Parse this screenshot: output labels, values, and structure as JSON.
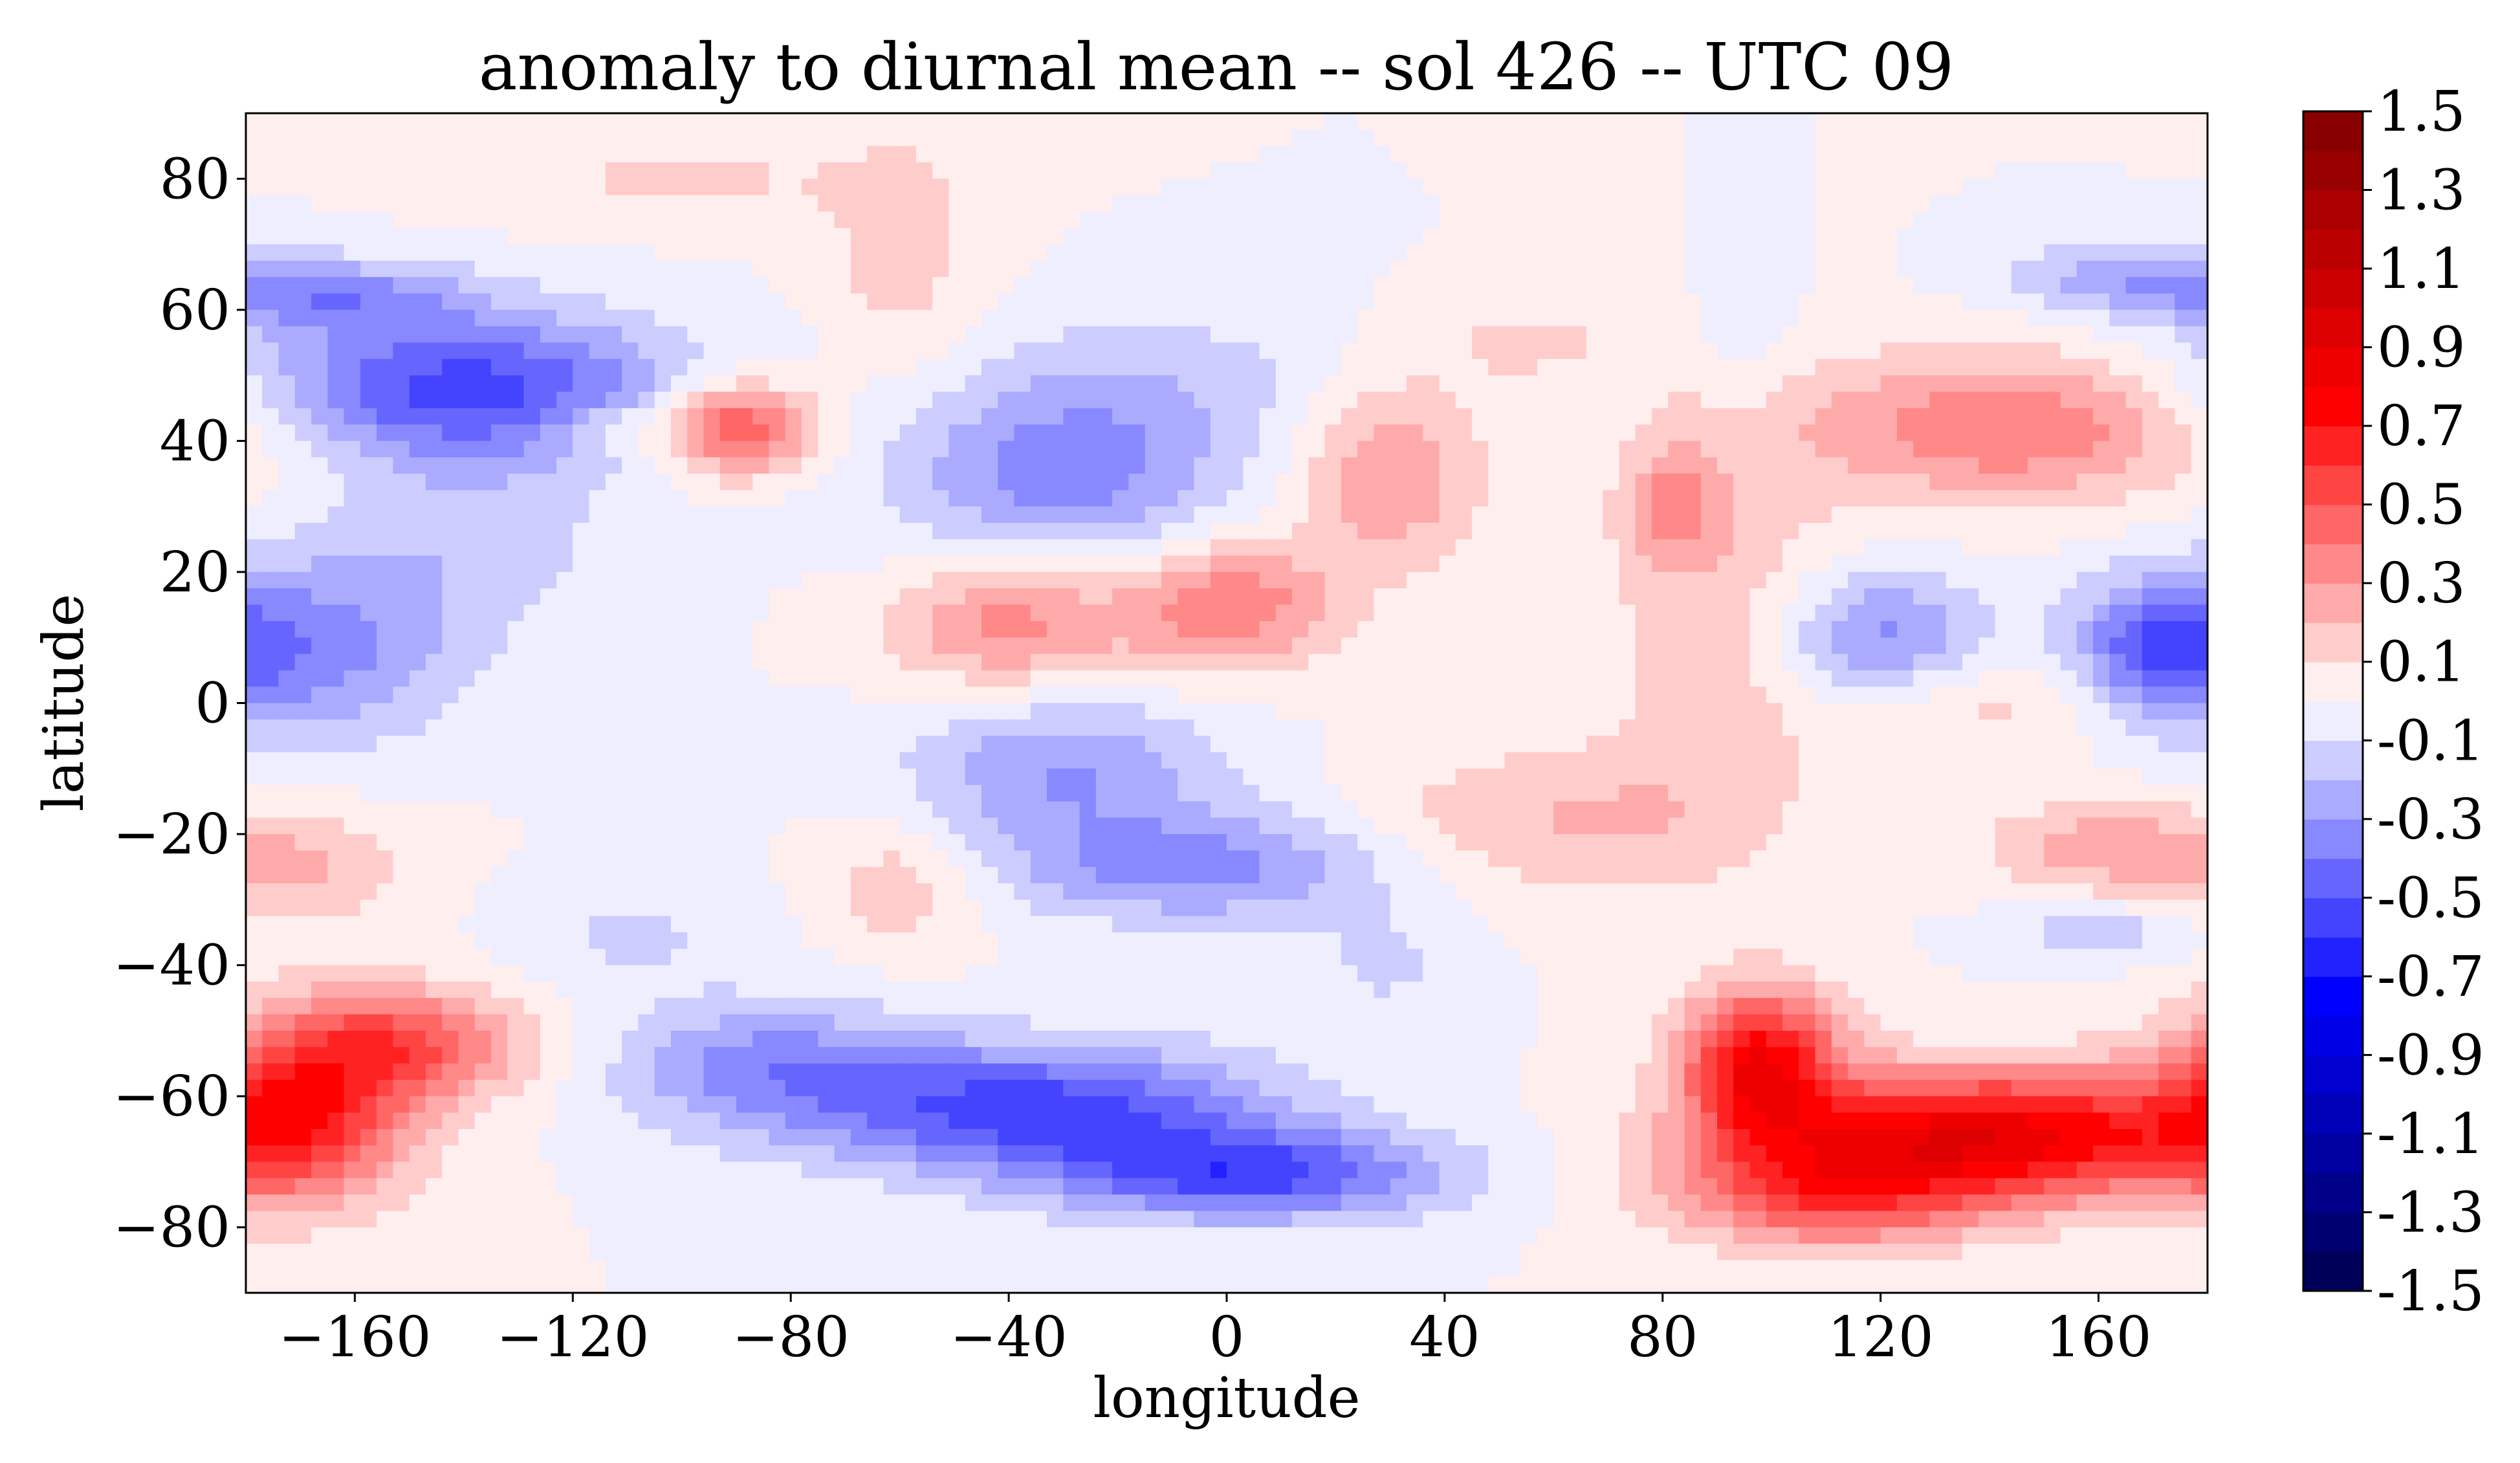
{
  "chart_data": {
    "type": "heatmap",
    "subtype": "filled-contour",
    "title": "anomaly to diurnal mean -- sol 426 -- UTC 09",
    "xlabel": "longitude",
    "ylabel": "latitude",
    "xlim": [
      -180,
      180
    ],
    "ylim": [
      -90,
      90
    ],
    "xticks": [
      -160,
      -120,
      -80,
      -40,
      0,
      40,
      80,
      120,
      160
    ],
    "xtick_labels": [
      "−160",
      "−120",
      "−80",
      "−40",
      "0",
      "40",
      "80",
      "120",
      "160"
    ],
    "yticks": [
      80,
      60,
      40,
      20,
      0,
      -20,
      -40,
      -60,
      -80
    ],
    "ytick_labels": [
      "80",
      "60",
      "40",
      "20",
      "0",
      "−20",
      "−40",
      "−60",
      "−80"
    ],
    "grid": false,
    "colormap": "seismic",
    "colorbar": {
      "placement": "right",
      "range": [
        -1.5,
        1.5
      ],
      "levels": [
        -1.5,
        -1.4,
        -1.3,
        -1.2,
        -1.1,
        -1.0,
        -0.9,
        -0.8,
        -0.7,
        -0.6,
        -0.5,
        -0.4,
        -0.3,
        -0.2,
        -0.1,
        0.0,
        0.1,
        0.2,
        0.3,
        0.4,
        0.5,
        0.6,
        0.7,
        0.8,
        0.9,
        1.0,
        1.1,
        1.2,
        1.3,
        1.4,
        1.5
      ],
      "tick_values": [
        1.5,
        1.3,
        1.1,
        0.9,
        0.7,
        0.5,
        0.3,
        0.1,
        -0.1,
        -0.3,
        -0.5,
        -0.7,
        -0.9,
        -1.1,
        -1.3,
        -1.5
      ],
      "tick_labels": [
        "1.5",
        "1.3",
        "1.1",
        "0.9",
        "0.7",
        "0.5",
        "0.3",
        "0.1",
        "-0.1",
        "-0.3",
        "-0.5",
        "-0.7",
        "-0.9",
        "-1.1",
        "-1.3",
        "-1.5"
      ]
    },
    "field_note": "Approximate anomaly features read off the contour plot (lon, lat centers in degrees, peak value, spread in degrees)",
    "features": [
      {
        "lon": -140,
        "lat": 48,
        "value": -0.55,
        "sx": 28,
        "sy": 8
      },
      {
        "lon": -165,
        "lat": 62,
        "value": -0.3,
        "sx": 18,
        "sy": 4
      },
      {
        "lon": -170,
        "lat": 8,
        "value": -0.35,
        "sx": 20,
        "sy": 10
      },
      {
        "lon": -140,
        "lat": 25,
        "value": -0.15,
        "sx": 20,
        "sy": 10
      },
      {
        "lon": -90,
        "lat": 42,
        "value": 0.55,
        "sx": 10,
        "sy": 5
      },
      {
        "lon": -115,
        "lat": 42,
        "value": 0.15,
        "sx": 8,
        "sy": 3
      },
      {
        "lon": -100,
        "lat": 80,
        "value": 0.12,
        "sx": 25,
        "sy": 5
      },
      {
        "lon": -60,
        "lat": 68,
        "value": 0.15,
        "sx": 10,
        "sy": 14
      },
      {
        "lon": -30,
        "lat": 35,
        "value": -0.35,
        "sx": 22,
        "sy": 10
      },
      {
        "lon": -10,
        "lat": 50,
        "value": -0.12,
        "sx": 25,
        "sy": 8
      },
      {
        "lon": -40,
        "lat": 12,
        "value": 0.35,
        "sx": 15,
        "sy": 7
      },
      {
        "lon": 0,
        "lat": 15,
        "value": 0.4,
        "sx": 14,
        "sy": 7
      },
      {
        "lon": 30,
        "lat": 35,
        "value": 0.3,
        "sx": 12,
        "sy": 10
      },
      {
        "lon": 55,
        "lat": 55,
        "value": 0.12,
        "sx": 14,
        "sy": 5
      },
      {
        "lon": 90,
        "lat": 15,
        "value": 0.18,
        "sx": 15,
        "sy": 25
      },
      {
        "lon": 82,
        "lat": 30,
        "value": 0.25,
        "sx": 6,
        "sy": 6
      },
      {
        "lon": 120,
        "lat": 10,
        "value": -0.35,
        "sx": 14,
        "sy": 7
      },
      {
        "lon": 170,
        "lat": 8,
        "value": -0.35,
        "sx": 10,
        "sy": 7
      },
      {
        "lon": 145,
        "lat": 42,
        "value": 0.4,
        "sx": 28,
        "sy": 8
      },
      {
        "lon": 95,
        "lat": 60,
        "value": -0.12,
        "sx": 6,
        "sy": 14
      },
      {
        "lon": 165,
        "lat": 65,
        "value": -0.25,
        "sx": 15,
        "sy": 4
      },
      {
        "lon": -30,
        "lat": -10,
        "value": -0.3,
        "sx": 20,
        "sy": 8
      },
      {
        "lon": -5,
        "lat": -25,
        "value": -0.35,
        "sx": 25,
        "sy": 6
      },
      {
        "lon": -170,
        "lat": -25,
        "value": 0.2,
        "sx": 15,
        "sy": 6
      },
      {
        "lon": -110,
        "lat": -35,
        "value": -0.12,
        "sx": 15,
        "sy": 6
      },
      {
        "lon": -60,
        "lat": -28,
        "value": 0.18,
        "sx": 10,
        "sy": 7
      },
      {
        "lon": -170,
        "lat": -62,
        "value": 0.55,
        "sx": 14,
        "sy": 10
      },
      {
        "lon": -150,
        "lat": -52,
        "value": 0.45,
        "sx": 16,
        "sy": 6
      },
      {
        "lon": -35,
        "lat": -62,
        "value": -0.55,
        "sx": 30,
        "sy": 7
      },
      {
        "lon": 5,
        "lat": -72,
        "value": -0.5,
        "sx": 25,
        "sy": 5
      },
      {
        "lon": -85,
        "lat": -55,
        "value": -0.3,
        "sx": 20,
        "sy": 7
      },
      {
        "lon": 30,
        "lat": -40,
        "value": -0.12,
        "sx": 10,
        "sy": 6
      },
      {
        "lon": 98,
        "lat": -55,
        "value": 0.75,
        "sx": 10,
        "sy": 8
      },
      {
        "lon": 140,
        "lat": -66,
        "value": 0.85,
        "sx": 30,
        "sy": 7
      },
      {
        "lon": 110,
        "lat": -75,
        "value": 0.45,
        "sx": 20,
        "sy": 6
      },
      {
        "lon": 160,
        "lat": -22,
        "value": 0.25,
        "sx": 15,
        "sy": 5
      },
      {
        "lon": 160,
        "lat": -35,
        "value": -0.18,
        "sx": 12,
        "sy": 3
      },
      {
        "lon": 60,
        "lat": -18,
        "value": 0.2,
        "sx": 25,
        "sy": 8
      },
      {
        "lon": 140,
        "lat": 0,
        "value": 0.15,
        "sx": 20,
        "sy": 6
      }
    ]
  }
}
